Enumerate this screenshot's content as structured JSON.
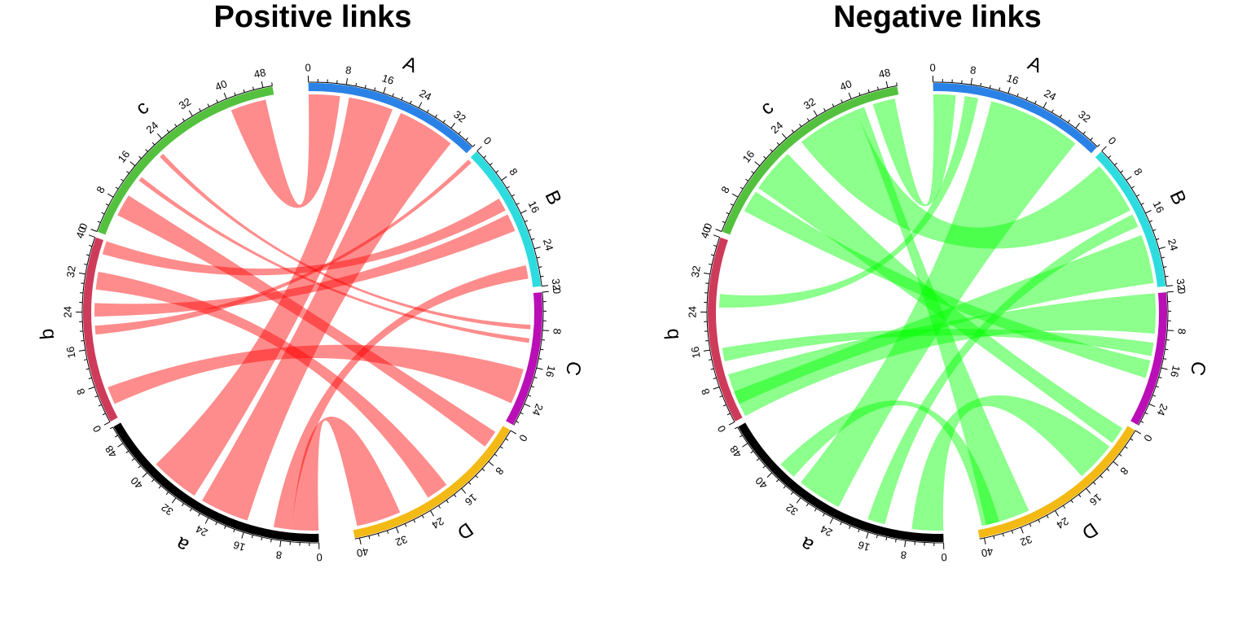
{
  "chart_data": [
    {
      "type": "chord",
      "title": "Positive links",
      "link_color": "#ff0000",
      "sectors": [
        {
          "name": "A",
          "range": [
            0,
            38
          ],
          "color": "#2B82E6"
        },
        {
          "name": "B",
          "range": [
            0,
            32
          ],
          "color": "#2EDCE0"
        },
        {
          "name": "C",
          "range": [
            0,
            29
          ],
          "color": "#BA0EB6"
        },
        {
          "name": "D",
          "range": [
            0,
            41
          ],
          "color": "#F3B914"
        },
        {
          "name": "a",
          "range": [
            0,
            52
          ],
          "color": "#000000"
        },
        {
          "name": "b",
          "range": [
            0,
            40
          ],
          "color": "#CE3B5A"
        },
        {
          "name": "c",
          "range": [
            0,
            50
          ],
          "color": "#54C13E"
        }
      ],
      "links": [
        {
          "from": "A",
          "from_range": [
            0,
            7
          ],
          "to": "c",
          "to_range": [
            40,
            48
          ]
        },
        {
          "from": "A",
          "from_range": [
            9,
            19
          ],
          "to": "a",
          "to_range": [
            29,
            40
          ]
        },
        {
          "from": "A",
          "from_range": [
            21,
            34
          ],
          "to": "a",
          "to_range": [
            16,
            27
          ]
        },
        {
          "from": "B",
          "from_range": [
            11,
            14
          ],
          "to": "b",
          "to_range": [
            37,
            40
          ]
        },
        {
          "from": "B",
          "from_range": [
            15,
            19
          ],
          "to": "b",
          "to_range": [
            23,
            26
          ]
        },
        {
          "from": "B",
          "from_range": [
            27,
            30
          ],
          "to": "a",
          "to_range": [
            6,
            10
          ]
        },
        {
          "from": "C",
          "from_range": [
            7,
            8
          ],
          "to": "c",
          "to_range": [
            21,
            22
          ]
        },
        {
          "from": "C",
          "from_range": [
            10,
            11
          ],
          "to": "c",
          "to_range": [
            14,
            15
          ]
        },
        {
          "from": "C",
          "from_range": [
            17,
            25
          ],
          "to": "b",
          "to_range": [
            3,
            7
          ]
        },
        {
          "from": "D",
          "from_range": [
            2,
            6
          ],
          "to": "c",
          "to_range": [
            5,
            10
          ]
        },
        {
          "from": "D",
          "from_range": [
            18,
            23
          ],
          "to": "b",
          "to_range": [
            29,
            33
          ]
        },
        {
          "from": "D",
          "from_range": [
            30,
            40
          ],
          "to": "a",
          "to_range": [
            0,
            6
          ]
        },
        {
          "from": "b",
          "from_range": [
            19,
            21
          ],
          "to": "B",
          "to_range": [
            0,
            1
          ]
        }
      ]
    },
    {
      "type": "chord",
      "title": "Negative links",
      "link_color": "#00ff00",
      "sectors": [
        {
          "name": "A",
          "range": [
            0,
            38
          ],
          "color": "#2B82E6"
        },
        {
          "name": "B",
          "range": [
            0,
            32
          ],
          "color": "#2EDCE0"
        },
        {
          "name": "C",
          "range": [
            0,
            29
          ],
          "color": "#BA0EB6"
        },
        {
          "name": "D",
          "range": [
            0,
            41
          ],
          "color": "#F3B914"
        },
        {
          "name": "a",
          "range": [
            0,
            52
          ],
          "color": "#000000"
        },
        {
          "name": "b",
          "range": [
            0,
            40
          ],
          "color": "#CE3B5A"
        },
        {
          "name": "c",
          "range": [
            0,
            50
          ],
          "color": "#54C13E"
        }
      ],
      "links": [
        {
          "from": "A",
          "from_range": [
            0,
            5
          ],
          "to": "c",
          "to_range": [
            44,
            49
          ]
        },
        {
          "from": "A",
          "from_range": [
            7,
            10
          ],
          "to": "b",
          "to_range": [
            25,
            28
          ]
        },
        {
          "from": "A",
          "from_range": [
            13,
            34
          ],
          "to": "a",
          "to_range": [
            24,
            34
          ]
        },
        {
          "from": "B",
          "from_range": [
            2,
            14
          ],
          "to": "c",
          "to_range": [
            26,
            40
          ]
        },
        {
          "from": "B",
          "from_range": [
            15,
            18
          ],
          "to": "a",
          "to_range": [
            13,
            17
          ]
        },
        {
          "from": "B",
          "from_range": [
            20,
            31
          ],
          "to": "b",
          "to_range": [
            3,
            6
          ]
        },
        {
          "from": "C",
          "from_range": [
            0,
            9
          ],
          "to": "b",
          "to_range": [
            0,
            10
          ]
        },
        {
          "from": "C",
          "from_range": [
            11,
            14
          ],
          "to": "b",
          "to_range": [
            13,
            16
          ]
        },
        {
          "from": "C",
          "from_range": [
            15,
            19
          ],
          "to": "c",
          "to_range": [
            6,
            11
          ]
        },
        {
          "from": "D",
          "from_range": [
            1,
            5
          ],
          "to": "c",
          "to_range": [
            12,
            22
          ]
        },
        {
          "from": "D",
          "from_range": [
            6,
            15
          ],
          "to": "a",
          "to_range": [
            0,
            7
          ]
        },
        {
          "from": "D",
          "from_range": [
            29,
            39
          ],
          "to": "c",
          "to_range": [
            40,
            42
          ]
        },
        {
          "from": "D",
          "from_range": [
            36,
            40
          ],
          "to": "a",
          "to_range": [
            36,
            40
          ]
        }
      ]
    }
  ]
}
